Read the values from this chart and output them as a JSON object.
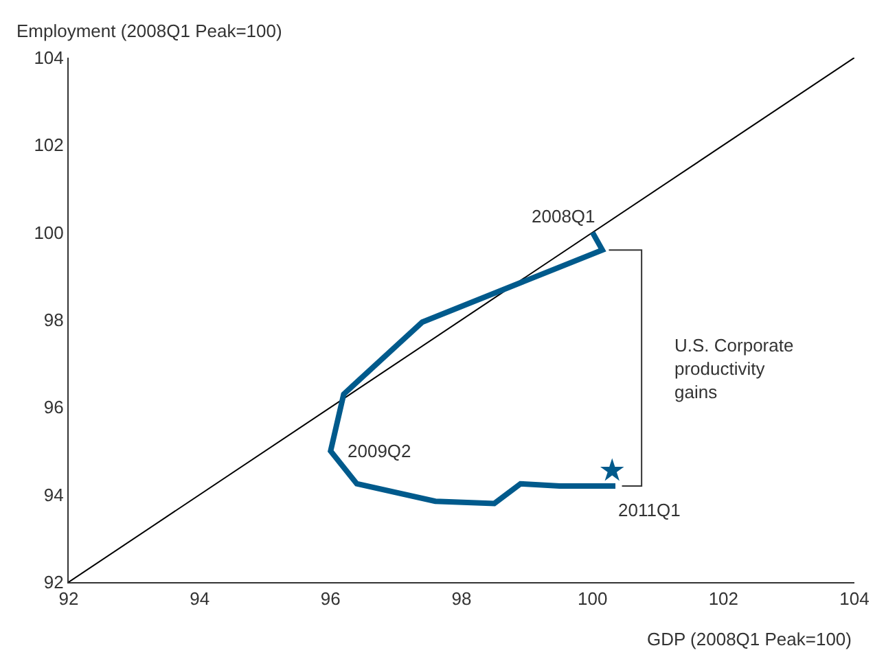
{
  "chart_data": {
    "type": "line",
    "xlabel": "GDP (2008Q1 Peak=100)",
    "ylabel": "Employment (2008Q1 Peak=100)",
    "xlim": [
      92,
      104
    ],
    "xticks": [
      92,
      94,
      96,
      98,
      100,
      102,
      104
    ],
    "ylim": [
      92,
      104
    ],
    "yticks": [
      92,
      94,
      96,
      98,
      100,
      102,
      104
    ],
    "series": [
      {
        "color": "#000000",
        "x": [
          92,
          104
        ],
        "values": [
          92,
          104
        ],
        "marker": "none"
      },
      {
        "color": "#005a8c",
        "x": [
          100.0,
          100.15,
          97.4,
          96.2,
          96.0,
          96.4,
          97.6,
          98.5,
          98.9,
          99.5,
          100.35
        ],
        "values": [
          100.0,
          99.6,
          97.95,
          96.3,
          95.0,
          94.25,
          93.85,
          93.8,
          94.25,
          94.2,
          94.2
        ],
        "marker": "none"
      },
      {
        "type": "scatter",
        "color": "#005a8c",
        "x": [
          100.3
        ],
        "values": [
          94.55
        ],
        "marker": "star"
      }
    ],
    "annotations": [
      {
        "text": "2008Q1",
        "x": 100.0,
        "y": 100.0
      },
      {
        "text": "2009Q2",
        "x": 96.0,
        "y": 95.0
      },
      {
        "text": "2011Q1",
        "x": 100.35,
        "y": 94.2
      },
      "U.S. Corporate\nproductivity\ngains"
    ]
  }
}
